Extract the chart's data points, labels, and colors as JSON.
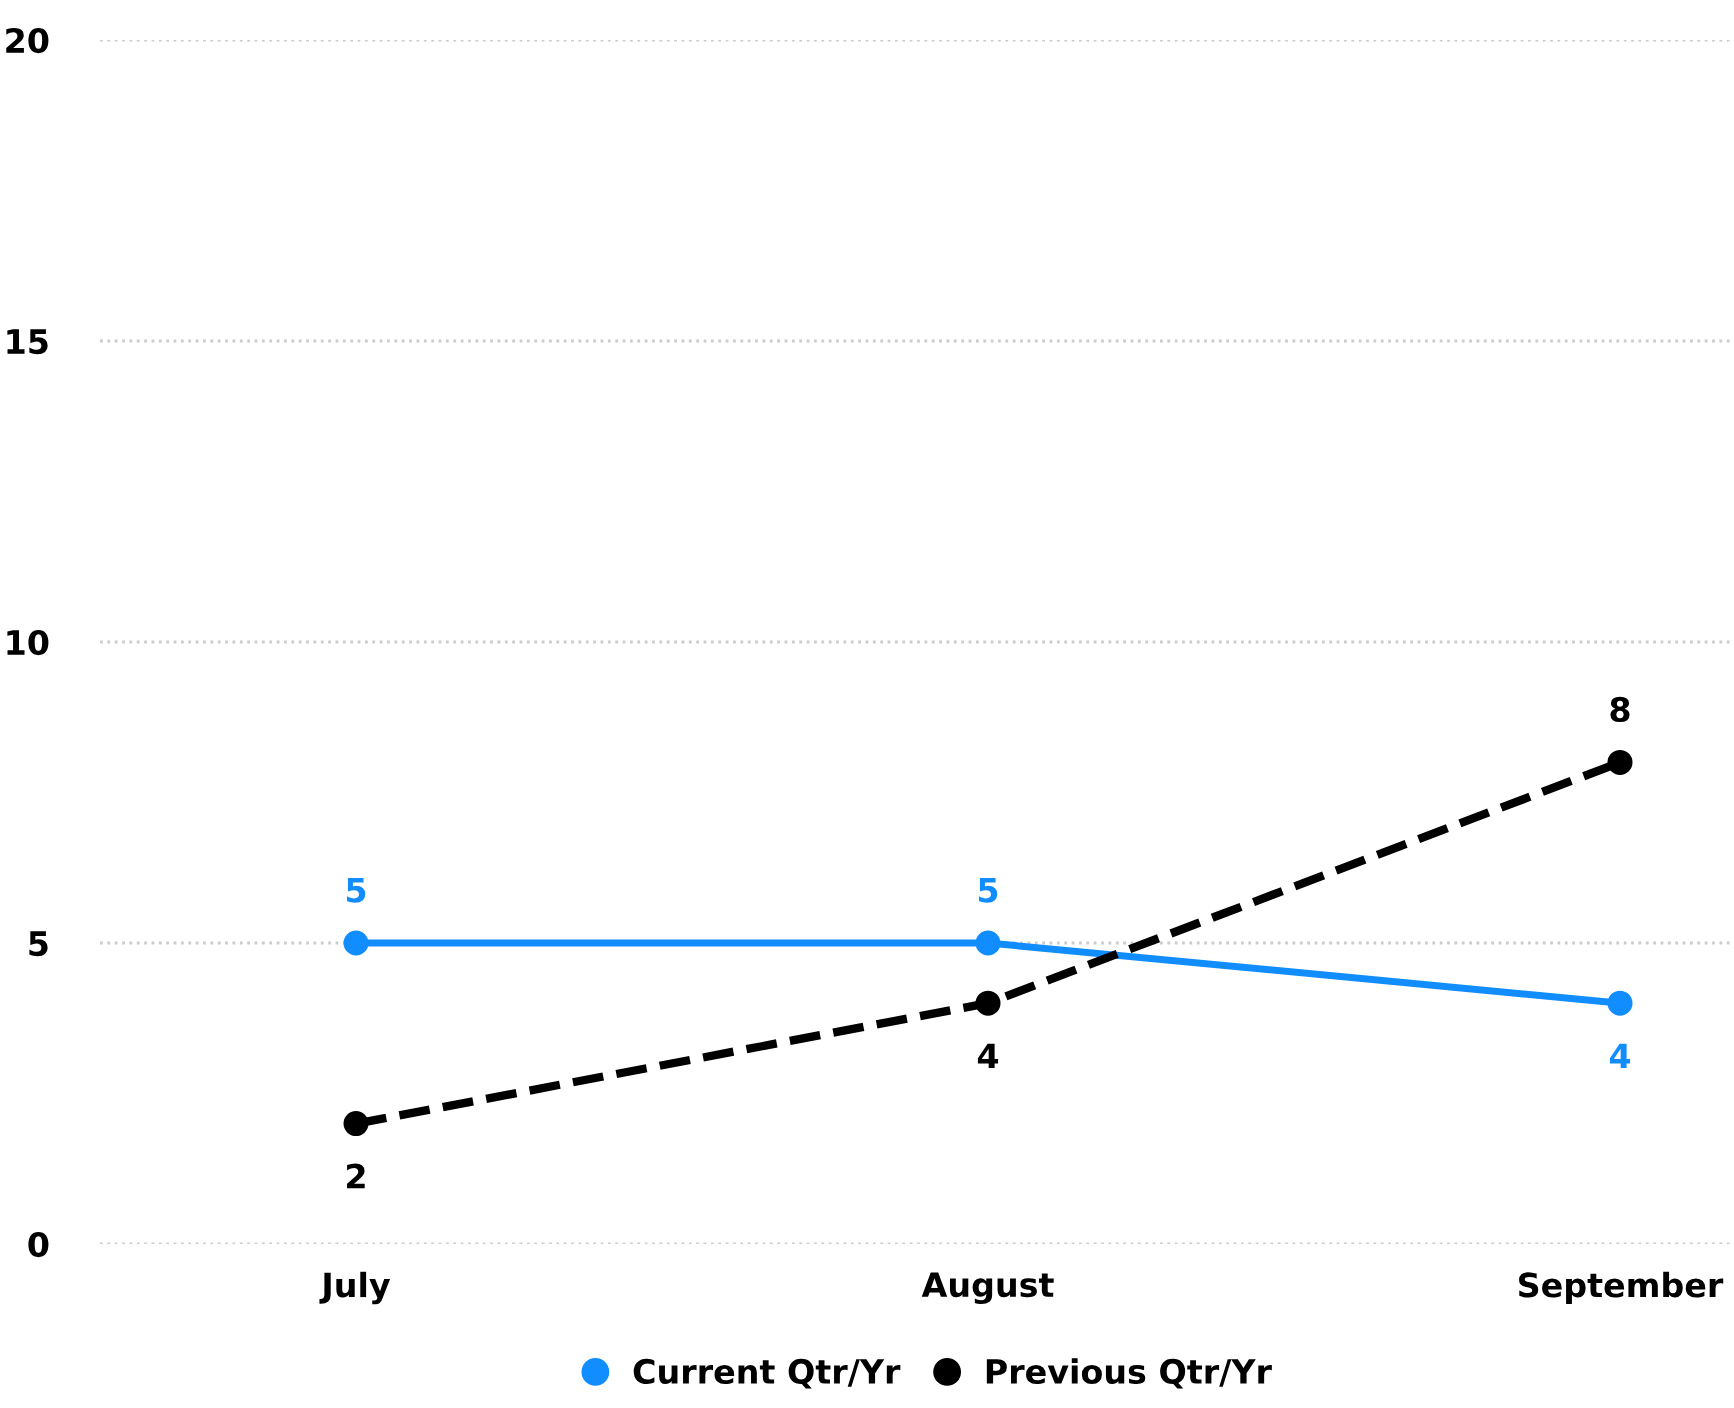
{
  "chart_data": {
    "type": "line",
    "categories": [
      "July",
      "August",
      "September"
    ],
    "series": [
      {
        "name": "Current Qtr/Yr",
        "color": "#118dff",
        "values": [
          5,
          5,
          4
        ],
        "line_style": "solid"
      },
      {
        "name": "Previous Qtr/Yr",
        "color": "#000000",
        "values": [
          2,
          4,
          8
        ],
        "line_style": "dashed"
      }
    ],
    "ylim": [
      0,
      20
    ],
    "yticks": [
      0,
      5,
      10,
      15,
      20
    ],
    "grid": "y",
    "legend": "bottom",
    "marker": "circle",
    "data_labels": true
  }
}
